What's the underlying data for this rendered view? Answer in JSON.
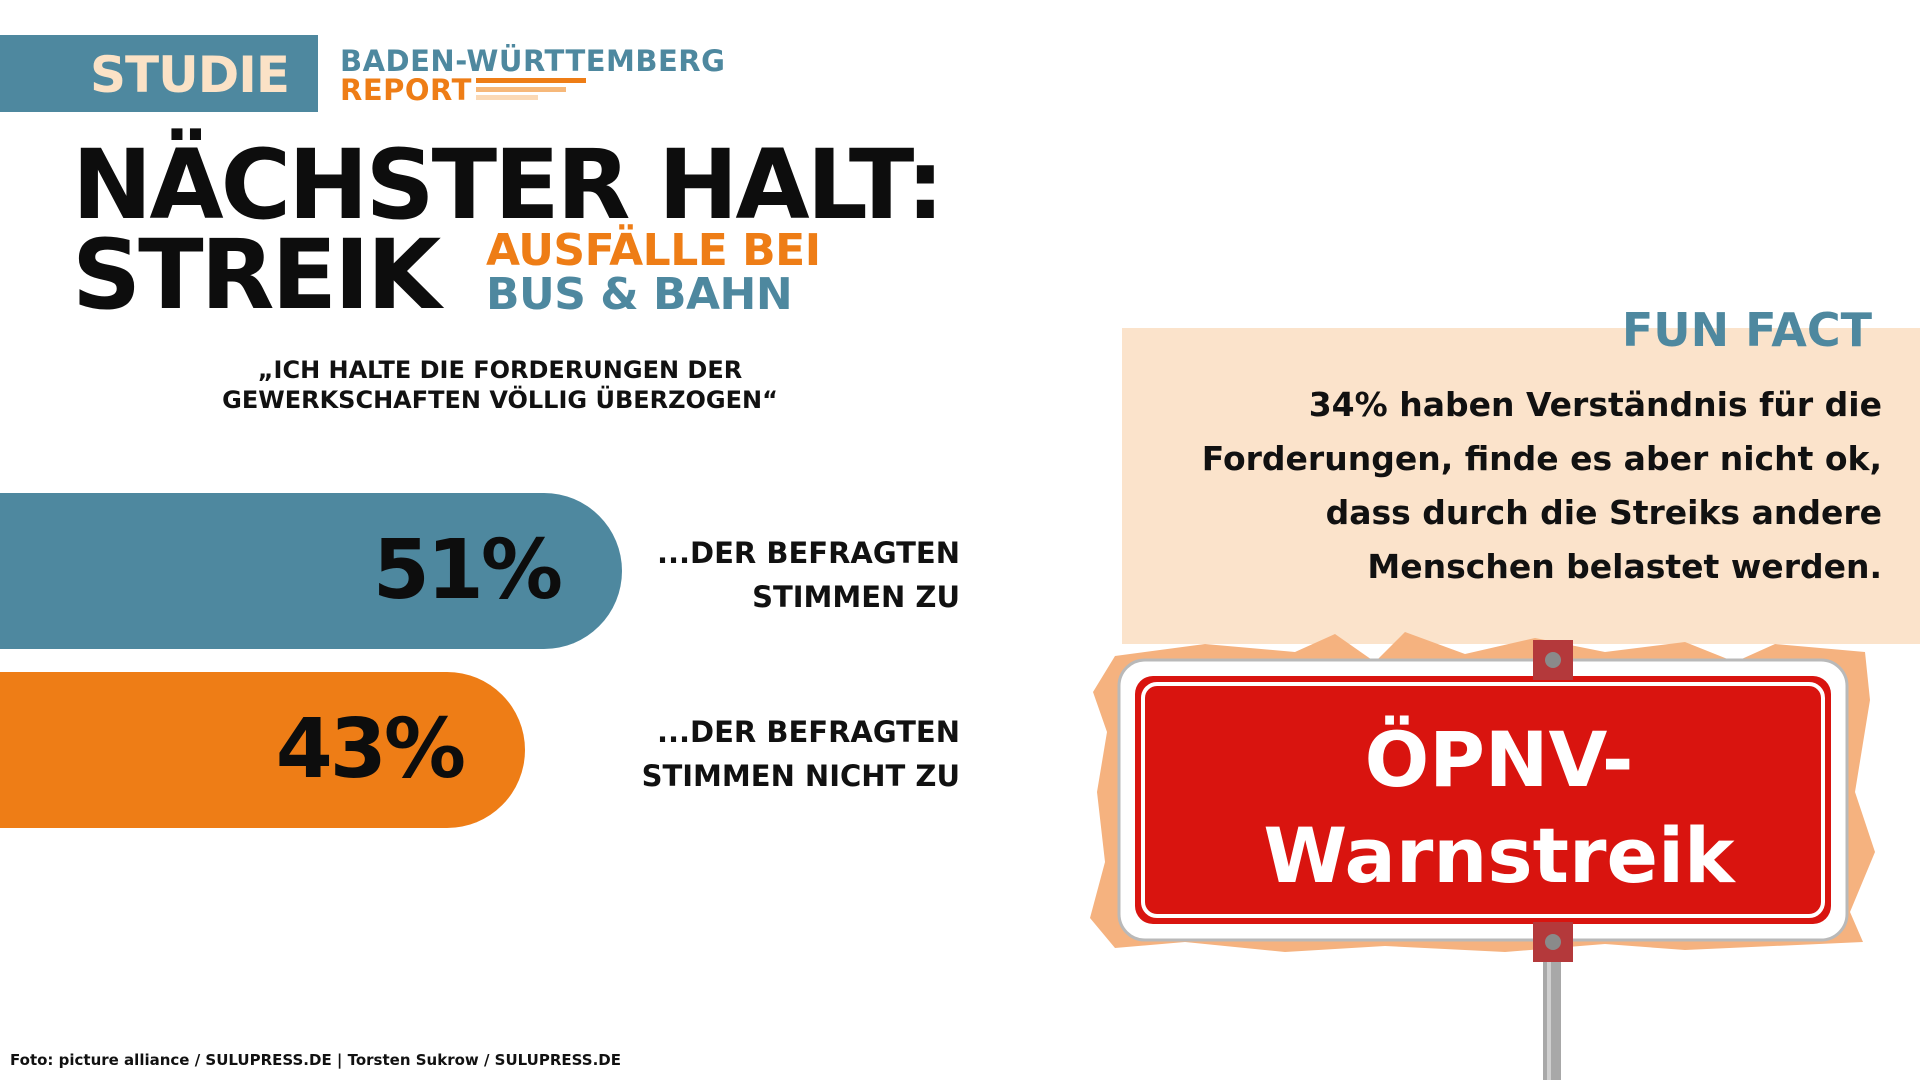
{
  "header": {
    "tag": "STUDIE",
    "report_line1": "BADEN-WÜRTTEMBERG",
    "report_line2": "REPORT"
  },
  "headline": {
    "line1": "NÄCHSTER HALT:",
    "line2": "STREIK",
    "sub1": "AUSFÄLLE BEI",
    "sub2": "BUS & BAHN"
  },
  "quote": "„ICH HALTE DIE FORDERUNGEN DER GEWERKSCHAFTEN VÖLLIG ÜBERZOGEN“",
  "funfact": {
    "title": "FUN FACT",
    "lines": [
      "34% haben Verständnis für die",
      "Forderungen, finde es aber nicht ok,",
      "dass durch die Streiks andere",
      "Menschen belastet werden."
    ]
  },
  "sign": {
    "text": "ÖPNV-Warnstreik"
  },
  "credit": "Foto: picture alliance / SULUPRESS.DE | Torsten Sukrow / SULUPRESS.DE",
  "colors": {
    "blue": "#4e889f",
    "orange": "#ee7d16",
    "cream": "#fbe3cb",
    "sign_red": "#d9140f"
  },
  "chart_data": {
    "type": "bar",
    "orientation": "horizontal",
    "title": "„ICH HALTE DIE FORDERUNGEN DER GEWERKSCHAFTEN VÖLLIG ÜBERZOGEN“",
    "categories": [
      "...DER BEFRAGTEN STIMMEN ZU",
      "...DER BEFRAGTEN STIMMEN NICHT ZU"
    ],
    "values": [
      51,
      43
    ],
    "value_labels": [
      "51%",
      "43%"
    ],
    "label_lines": [
      [
        "...DER BEFRAGTEN",
        "STIMMEN ZU"
      ],
      [
        "...DER BEFRAGTEN",
        "STIMMEN NICHT ZU"
      ]
    ],
    "bar_colors": [
      "#4e889f",
      "#ee7d16"
    ],
    "unit": "%"
  }
}
